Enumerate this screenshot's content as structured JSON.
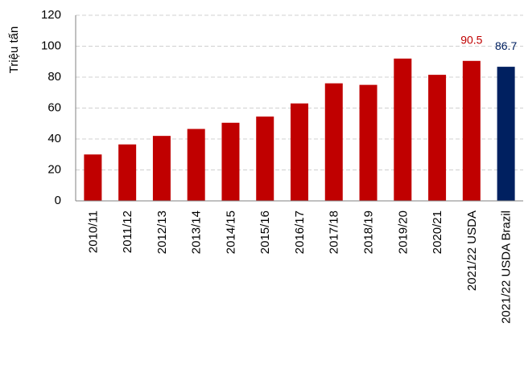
{
  "chart_data": {
    "type": "bar",
    "y_label": "Triệu tấn",
    "categories": [
      "2010/11",
      "2011/12",
      "2012/13",
      "2013/14",
      "2014/15",
      "2015/16",
      "2016/17",
      "2017/18",
      "2018/19",
      "2019/20",
      "2020/21",
      "2021/22 USDA",
      "2021/22 USDA Brazil"
    ],
    "values": [
      30,
      36.5,
      42,
      46.5,
      50.5,
      54.5,
      63,
      76,
      75,
      92,
      81.5,
      90.5,
      86.7
    ],
    "value_labels": [
      null,
      null,
      null,
      null,
      null,
      null,
      null,
      null,
      null,
      null,
      null,
      "90.5",
      "86.7"
    ],
    "colors": [
      "#c00000",
      "#c00000",
      "#c00000",
      "#c00000",
      "#c00000",
      "#c00000",
      "#c00000",
      "#c00000",
      "#c00000",
      "#c00000",
      "#c00000",
      "#c00000",
      "#002060"
    ],
    "ylim": [
      0,
      120
    ],
    "yticks": [
      0,
      20,
      40,
      60,
      80,
      100,
      120
    ],
    "grid": true
  }
}
